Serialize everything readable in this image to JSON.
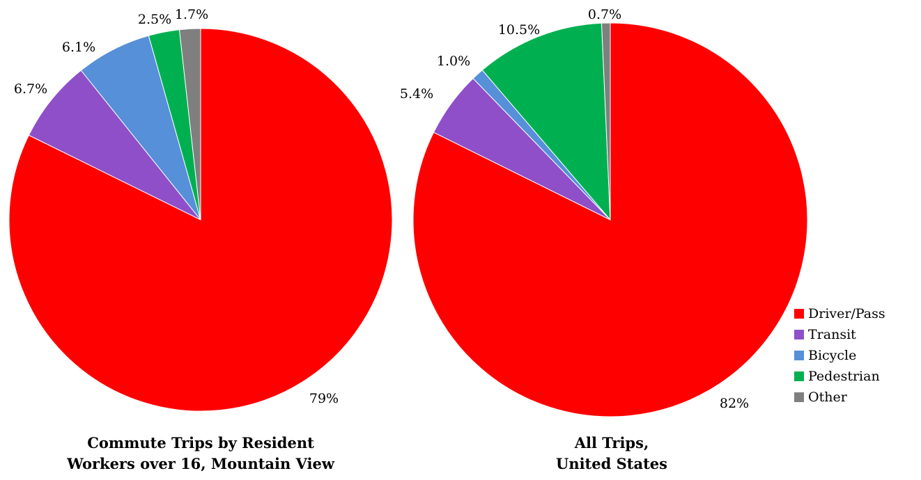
{
  "chart_data": [
    {
      "type": "pie",
      "title_lines": [
        "Commute Trips by Resident",
        "Workers over 16, Mountain View"
      ],
      "slices": [
        {
          "name": "Driver/Pass",
          "value": 79,
          "label": "79%"
        },
        {
          "name": "Transit",
          "value": 6.7,
          "label": "6.7%"
        },
        {
          "name": "Bicycle",
          "value": 6.1,
          "label": "6.1%"
        },
        {
          "name": "Pedestrian",
          "value": 2.5,
          "label": "2.5%"
        },
        {
          "name": "Other",
          "value": 1.7,
          "label": "1.7%"
        }
      ]
    },
    {
      "type": "pie",
      "title_lines": [
        "All Trips,",
        "United States"
      ],
      "slices": [
        {
          "name": "Driver/Pass",
          "value": 82,
          "label": "82%"
        },
        {
          "name": "Transit",
          "value": 5.4,
          "label": "5.4%"
        },
        {
          "name": "Bicycle",
          "value": 1.0,
          "label": "1.0%"
        },
        {
          "name": "Pedestrian",
          "value": 10.5,
          "label": "10.5%"
        },
        {
          "name": "Other",
          "value": 0.7,
          "label": "0.7%"
        }
      ]
    }
  ],
  "legend": {
    "placement": "bottom-right",
    "items": [
      {
        "label": "Driver/Pass",
        "color": "#ff0000"
      },
      {
        "label": "Transit",
        "color": "#8e4fc9"
      },
      {
        "label": "Bicycle",
        "color": "#5590d8"
      },
      {
        "label": "Pedestrian",
        "color": "#00b050"
      },
      {
        "label": "Other",
        "color": "#7f7f7f"
      }
    ]
  }
}
